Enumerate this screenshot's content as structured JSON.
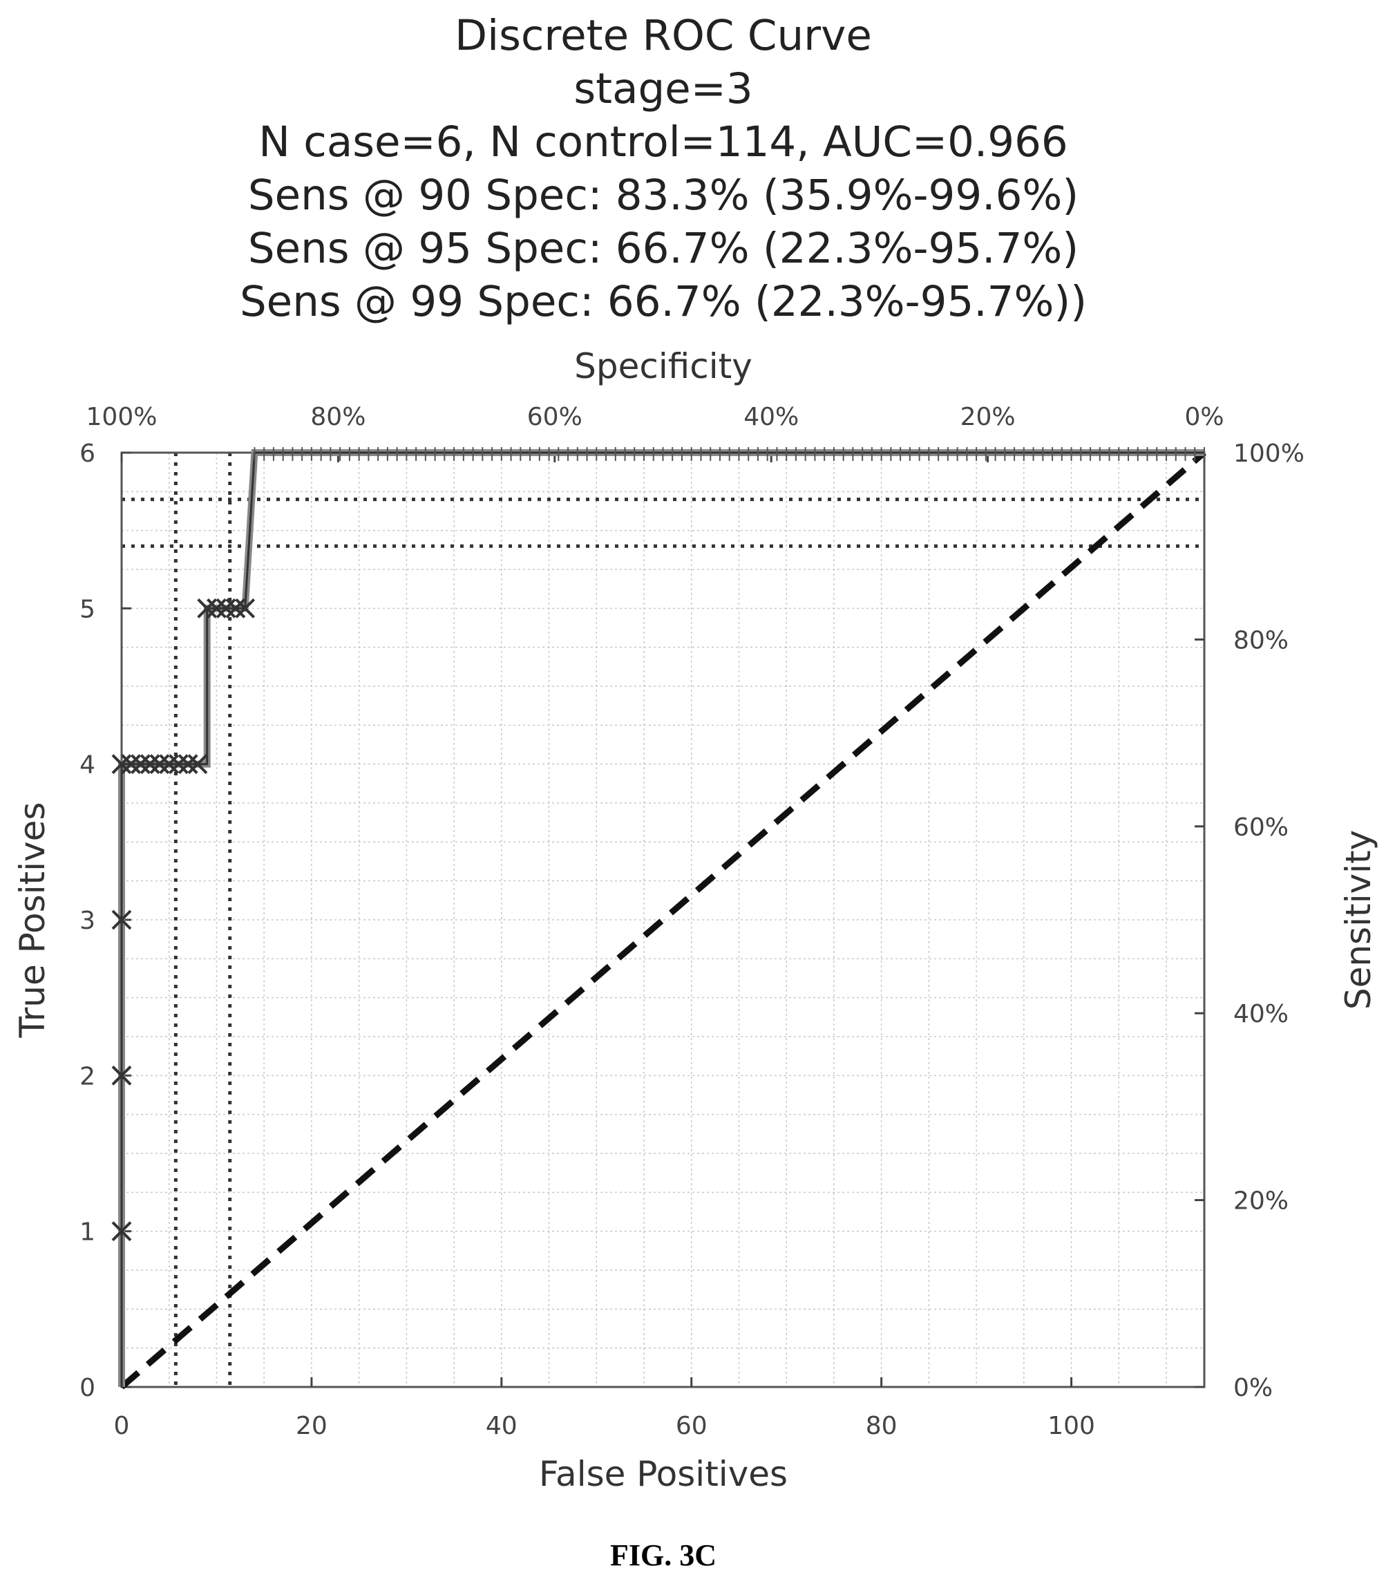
{
  "chart_data": {
    "type": "line",
    "title_lines": [
      "Discrete ROC Curve",
      "stage=3",
      "N case=6, N control=114, AUC=0.966",
      "Sens @ 90 Spec: 83.3% (35.9%-99.6%)",
      "Sens @ 95 Spec: 66.7% (22.3%-95.7%)",
      "Sens @ 99 Spec: 66.7% (22.3%-95.7%))"
    ],
    "xlabel": "False Positives",
    "ylabel": "True Positives",
    "x2label": "Specificity",
    "y2label": "Sensitivity",
    "xlim": [
      0,
      114
    ],
    "ylim": [
      0,
      6
    ],
    "x_ticks": [
      0,
      20,
      40,
      60,
      80,
      100
    ],
    "y_ticks": [
      0,
      1,
      2,
      3,
      4,
      5,
      6
    ],
    "x2_ticks": [
      "100%",
      "80%",
      "60%",
      "40%",
      "20%",
      "0%"
    ],
    "y2_ticks": [
      "0%",
      "20%",
      "40%",
      "60%",
      "80%",
      "100%"
    ],
    "grid": true,
    "series": [
      {
        "points": [
          [
            0,
            0
          ],
          [
            0,
            1
          ],
          [
            0,
            2
          ],
          [
            0,
            3
          ],
          [
            0,
            4
          ],
          [
            1,
            4
          ],
          [
            2,
            4
          ],
          [
            3,
            4
          ],
          [
            4,
            4
          ],
          [
            5,
            4
          ],
          [
            6,
            4
          ],
          [
            7,
            4
          ],
          [
            8,
            4
          ],
          [
            9,
            4
          ],
          [
            9,
            5
          ],
          [
            10,
            5
          ],
          [
            11,
            5
          ],
          [
            12,
            5
          ],
          [
            13,
            5
          ],
          [
            14,
            6
          ],
          [
            20,
            6
          ],
          [
            30,
            6
          ],
          [
            40,
            6
          ],
          [
            50,
            6
          ],
          [
            60,
            6
          ],
          [
            70,
            6
          ],
          [
            80,
            6
          ],
          [
            90,
            6
          ],
          [
            100,
            6
          ],
          [
            110,
            6
          ],
          [
            114,
            6
          ]
        ],
        "markers": [
          [
            0,
            1
          ],
          [
            0,
            2
          ],
          [
            0,
            3
          ],
          [
            0,
            4
          ],
          [
            1,
            4
          ],
          [
            2,
            4
          ],
          [
            3,
            4
          ],
          [
            4,
            4
          ],
          [
            5,
            4
          ],
          [
            6,
            4
          ],
          [
            7,
            4
          ],
          [
            8,
            4
          ],
          [
            9,
            5
          ],
          [
            10,
            5
          ],
          [
            11,
            5
          ],
          [
            12,
            5
          ],
          [
            13,
            5
          ]
        ]
      }
    ],
    "chance_line": [
      [
        0,
        0
      ],
      [
        114,
        6
      ]
    ],
    "reference_lines": {
      "vertical_dotted_x": [
        5.7,
        11.4
      ],
      "horizontal_dotted_y": [
        5.7,
        5.4
      ]
    },
    "caption": "FIG. 3C"
  }
}
